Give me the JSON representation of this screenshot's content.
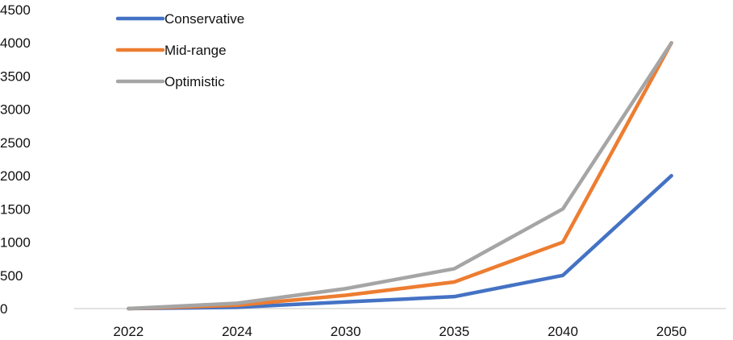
{
  "chart_data": {
    "type": "line",
    "categories": [
      "2022",
      "2024",
      "2030",
      "2035",
      "2040",
      "2050"
    ],
    "series": [
      {
        "name": "Conservative",
        "color": "#4472c4",
        "values": [
          0,
          20,
          100,
          180,
          500,
          2000
        ]
      },
      {
        "name": "Mid-range",
        "color": "#ed7d31",
        "values": [
          0,
          50,
          200,
          400,
          1000,
          4000
        ]
      },
      {
        "name": "Optimistic",
        "color": "#a5a5a5",
        "values": [
          0,
          80,
          300,
          600,
          1500,
          4000
        ]
      }
    ],
    "ylim": [
      0,
      4500
    ],
    "yticks": [
      "0",
      "500",
      "1000",
      "1500",
      "2000",
      "2500",
      "3000",
      "3500",
      "4000",
      "4500"
    ],
    "grid": false,
    "legend_position": "top-left",
    "title": "",
    "xlabel": "",
    "ylabel": ""
  }
}
